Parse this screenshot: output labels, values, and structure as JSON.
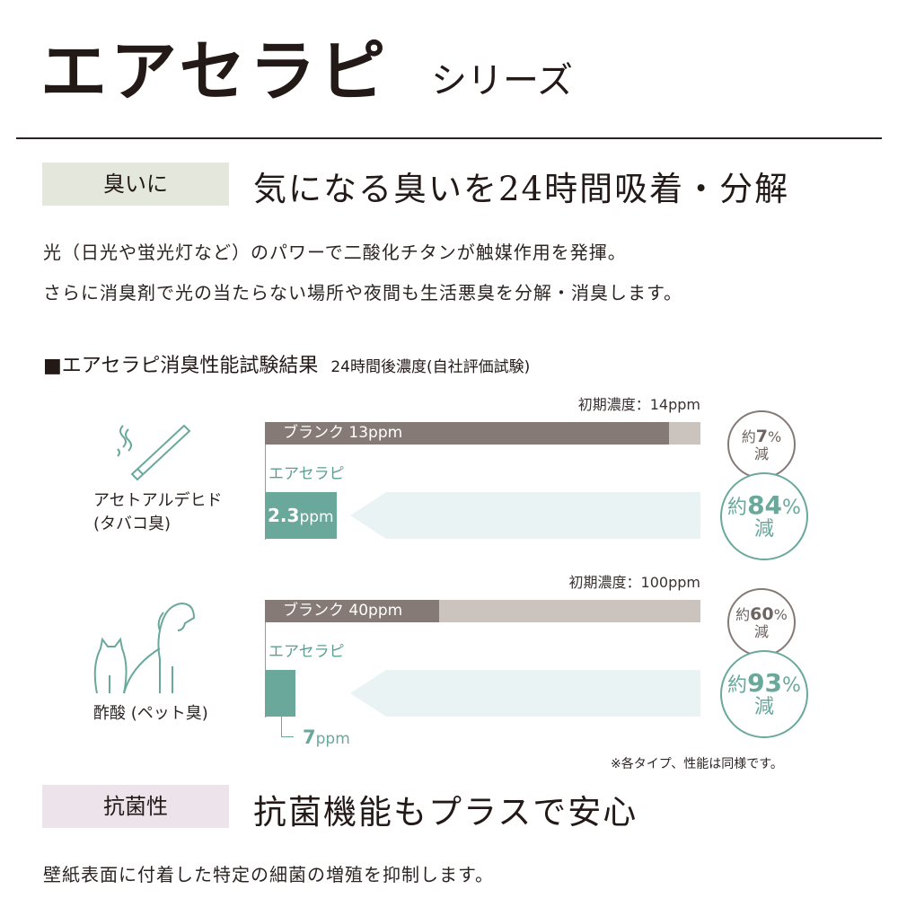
{
  "header": {
    "title": "エアセラピ",
    "subtitle": "シリーズ"
  },
  "section1": {
    "tag": "臭いに",
    "heading": "気になる臭いを24時間吸着・分解",
    "lines": [
      "光（日光や蛍光灯など）のパワーで二酸化チタンが触媒作用を発揮。",
      "さらに消臭剤で光の当たらない場所や夜間も生活悪臭を分解・消臭します。"
    ]
  },
  "results": {
    "title": "■エアセラピ消臭性能試験結果",
    "subtitle": "24時間後濃度(自社評価試験)",
    "unit": "ppm",
    "blank_label": "ブランク",
    "product_label": "エアセラピ",
    "rows": [
      {
        "name": "アセトアルデヒド",
        "sub": "(タバコ臭)",
        "icon": "cigarette-icon",
        "initial_label": "初期濃度：14ppm",
        "initial": 14,
        "blank": 13,
        "blank_text": "13ppm",
        "product": 2.3,
        "product_num": "2.3",
        "blank_reduction": {
          "pre": "約",
          "num": "7",
          "pct": "%",
          "post": "減"
        },
        "product_reduction": {
          "pre": "約",
          "num": "84",
          "pct": "%",
          "post": "減"
        }
      },
      {
        "name": "酢酸",
        "sub": "(ペット臭)",
        "icon": "dog-cat-icon",
        "initial_label": "初期濃度：100ppm",
        "initial": 100,
        "blank": 40,
        "blank_text": "40ppm",
        "product": 7,
        "product_num": "7",
        "blank_reduction": {
          "pre": "約",
          "num": "60",
          "pct": "%",
          "post": "減"
        },
        "product_reduction": {
          "pre": "約",
          "num": "93",
          "pct": "%",
          "post": "減"
        }
      }
    ],
    "note": "※各タイプ、性能は同様です。",
    "colors": {
      "blank": "#857a75",
      "initial": "#cbc3be",
      "product": "#6aa89c",
      "arrow": "#e9f3f3"
    }
  },
  "section2": {
    "tag": "抗菌性",
    "heading": "抗菌機能もプラスで安心",
    "line": "壁紙表面に付着した特定の細菌の増殖を抑制します。"
  }
}
